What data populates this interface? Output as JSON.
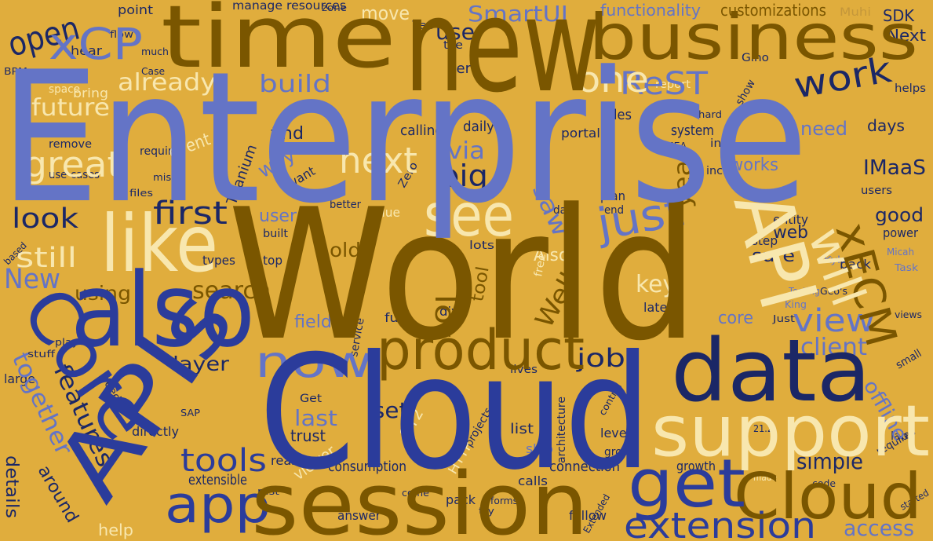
{
  "words": [
    "Enterprise",
    "World",
    "Cloud",
    "new",
    "time",
    "business",
    "also",
    "APIs",
    "Core",
    "session",
    "data",
    "support",
    "product",
    "now",
    "get",
    "Cloud",
    "app",
    "extension",
    "tools",
    "like",
    "API",
    "will",
    "xECM",
    "see",
    "next",
    "great",
    "first",
    "look",
    "still",
    "New",
    "xCP",
    "open",
    "one",
    "ReST",
    "work",
    "already",
    "future",
    "build",
    "just",
    "view",
    "client",
    "job",
    "layer",
    "features",
    "together",
    "search",
    "using",
    "key",
    "sure",
    "web",
    "good",
    "IMaaS",
    "days",
    "SmartUI",
    "functionality",
    "customizations",
    "SDK",
    "Next",
    "manage resources",
    "use",
    "move",
    "saw",
    "big",
    "via",
    "way",
    "find",
    "year",
    "simple",
    "access",
    "set",
    "last",
    "offline",
    "consumption",
    "connection",
    "details",
    "extensible",
    "viewer",
    "lot",
    "tool",
    "Well",
    "Also",
    "old",
    "user",
    "need",
    "works",
    "core",
    "latest",
    "help",
    "around",
    "trust",
    "field",
    "list",
    "skip",
    "level",
    "growth",
    "follow",
    "answer",
    "pack",
    "reason",
    "directly",
    "Titanium",
    "event",
    "daily",
    "calling",
    "system",
    "per",
    "rules",
    "portal",
    "report",
    "hear",
    "BPM",
    "point",
    "Muhi",
    "Gino",
    "tile",
    "space",
    "bring",
    "remove",
    "use-cases",
    "require",
    "plan",
    "init",
    "incl",
    "users",
    "entity",
    "power",
    "step",
    "types",
    "top",
    "lots",
    "value",
    "dive",
    "back",
    "eventually",
    "full",
    "private",
    "free",
    "Testing",
    "King",
    "Kyle",
    "Micah",
    "Task",
    "views",
    "small",
    "labs",
    "requires",
    "made",
    "code",
    "started",
    "HTTP",
    "OT2",
    "calls",
    "projects",
    "architecture",
    "group",
    "control",
    "Get",
    "large",
    "needs",
    "stuff",
    "play",
    "based",
    "files",
    "miss",
    "want",
    "better",
    "built",
    "helps",
    "show",
    "hard",
    "end",
    "day",
    "Yes",
    "zone",
    "EMEA",
    "Zero",
    "two",
    "service",
    "lives",
    "try",
    "come",
    "rest",
    "Extended",
    "forms",
    "Case",
    "flow",
    "much",
    "Geo's",
    "21.2",
    "Just",
    "SAP"
  ]
}
